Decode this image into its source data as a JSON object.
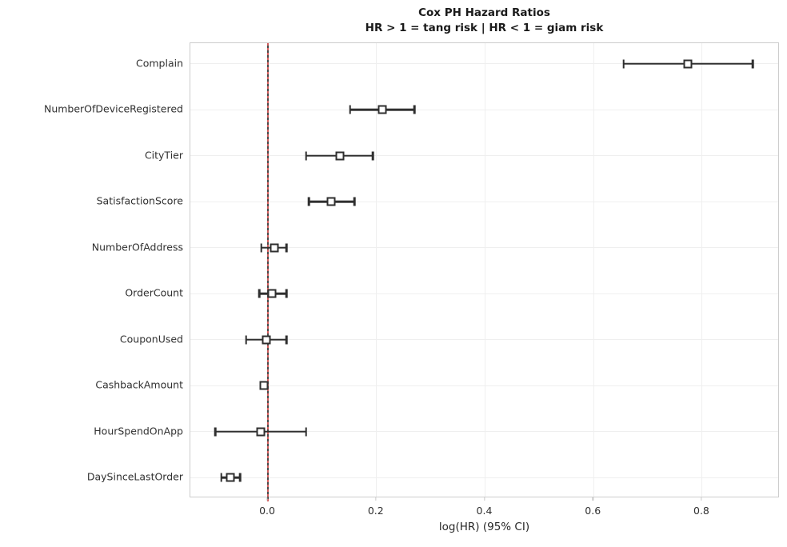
{
  "figure": {
    "title": "Cox PH Hazard Ratios",
    "subtitle": "HR > 1 = tang risk | HR < 1 = giam risk",
    "xlabel": "log(HR) (95% CI)"
  },
  "chart_data": {
    "type": "scatter",
    "subtype": "forest-plot-horizontal-errorbars",
    "title": "Cox PH Hazard Ratios",
    "subtitle": "HR > 1 = tang risk | HR < 1 = giam risk",
    "xlabel": "log(HR) (95% CI)",
    "ylabel": "",
    "categories": [
      "Complain",
      "NumberOfDeviceRegistered",
      "CityTier",
      "SatisfactionScore",
      "NumberOfAddress",
      "OrderCount",
      "CouponUsed",
      "CashbackAmount",
      "HourSpendOnApp",
      "DaySinceLastOrder"
    ],
    "series": [
      {
        "name": "log(HR) point estimate with 95% CI",
        "values": [
          0.774,
          0.21,
          0.133,
          0.116,
          0.012,
          0.008,
          -0.003,
          -0.007,
          -0.013,
          -0.069
        ],
        "ci_low": [
          0.655,
          0.151,
          0.07,
          0.075,
          -0.012,
          -0.016,
          -0.04,
          -0.011,
          -0.097,
          -0.086
        ],
        "ci_high": [
          0.893,
          0.27,
          0.193,
          0.159,
          0.034,
          0.034,
          0.034,
          -0.003,
          0.07,
          -0.051
        ]
      }
    ],
    "xticks": [
      0.0,
      0.2,
      0.4,
      0.6,
      0.8
    ],
    "xtick_labels": [
      "0.0",
      "0.2",
      "0.4",
      "0.6",
      "0.8"
    ],
    "xlim": [
      -0.143,
      0.943
    ],
    "grid": true,
    "legend_position": "none",
    "reference_line_x": 0.0,
    "marker": "open-square"
  },
  "colors": {
    "errorbar": "#2f2f2f",
    "marker_fill": "#ffffff",
    "reference_red": "#d25b5b",
    "reference_dark": "#494949",
    "grid": "#efefef",
    "spine": "#cccccc",
    "text": "#262626"
  }
}
